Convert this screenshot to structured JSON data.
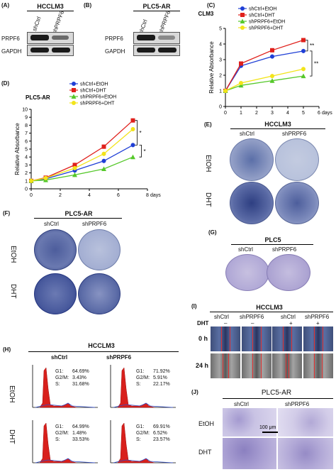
{
  "panel_A": {
    "letter": "(A)",
    "title": "HCCLM3",
    "lane_labels": [
      "shCtrl",
      "shPRPF6"
    ],
    "row_labels": [
      "PRPF6",
      "GAPDH"
    ]
  },
  "panel_B": {
    "letter": "(B)",
    "title": "PLC5-AR",
    "lane_labels": [
      "shCtrl",
      "shPRPF6"
    ],
    "row_labels": [
      "PRPF6",
      "GAPDH"
    ]
  },
  "panel_E": {
    "letter": "(E)",
    "title": "HCCLM3",
    "col_labels": [
      "shCtrl",
      "shPRPF6"
    ],
    "row_labels": [
      "EtOH",
      "DHT"
    ]
  },
  "panel_F": {
    "letter": "(F)",
    "title": "PLC5-AR",
    "col_labels": [
      "shCtrl",
      "shPRPF6"
    ],
    "row_labels": [
      "EtOH",
      "DHT"
    ]
  },
  "panel_G": {
    "letter": "(G)",
    "title": "PLC5",
    "col_labels": [
      "shCtrl",
      "shPRPF6"
    ]
  },
  "panel_I": {
    "letter": "(I)",
    "title": "HCCLM3",
    "col_labels": [
      "shCtrl",
      "shPRPF6",
      "shCtrl",
      "shPRPF6"
    ],
    "dht_label": "DHT",
    "dht_signs": [
      "–",
      "–",
      "+",
      "+"
    ],
    "row_labels": [
      "0 h",
      "24 h"
    ]
  },
  "panel_H": {
    "letter": "(H)",
    "title": "HCCLM3",
    "col_labels": [
      "shCtrl",
      "shPRPF6"
    ],
    "row_labels": [
      "EtOH",
      "DHT"
    ],
    "stats": [
      {
        "g1": "G1:",
        "g1v": "64.69%",
        "g2": "G2/M:",
        "g2v": "3.43%",
        "s": "S:",
        "sv": "31.68%"
      },
      {
        "g1": "G1:",
        "g1v": "71.92%",
        "g2": "G2/M:",
        "g2v": "5.91%",
        "s": "S:",
        "sv": "22.17%"
      },
      {
        "g1": "G1:",
        "g1v": "64.99%",
        "g2": "G2/M:",
        "g2v": "1.48%",
        "s": "S:",
        "sv": "33.53%"
      },
      {
        "g1": "G1:",
        "g1v": "69.91%",
        "g2": "G2/M:",
        "g2v": "6.52%",
        "s": "S:",
        "sv": "23.57%"
      }
    ]
  },
  "panel_J": {
    "letter": "(J)",
    "title": "PLC5-AR",
    "col_labels": [
      "shCtrl",
      "shPRPF6"
    ],
    "row_labels": [
      "EtOH",
      "DHT"
    ],
    "scale_bar": "100 μm"
  },
  "chart_data": [
    {
      "panel": "(C)",
      "type": "line",
      "title": "HCCLM3",
      "ylabel": "Relative Absorbance",
      "xlabel": "days",
      "x": [
        0,
        1,
        3,
        5
      ],
      "xlim": [
        0,
        6
      ],
      "ylim": [
        0,
        5
      ],
      "xticks": [
        0,
        1,
        2,
        3,
        4,
        5,
        6
      ],
      "yticks": [
        0,
        1,
        2,
        3,
        4,
        5
      ],
      "series": [
        {
          "name": "shCtrl+EtOH",
          "color": "#1f3fd6",
          "marker": "circle",
          "values": [
            1.0,
            2.6,
            3.2,
            3.55
          ]
        },
        {
          "name": "shCtrl+DHT",
          "color": "#e0201b",
          "marker": "square",
          "values": [
            1.0,
            2.75,
            3.6,
            4.25
          ]
        },
        {
          "name": "shPRPF6+EtOH",
          "color": "#55c82a",
          "marker": "triangle",
          "values": [
            1.0,
            1.35,
            1.65,
            1.95
          ]
        },
        {
          "name": "shPRPF6+DHT",
          "color": "#f2e41a",
          "marker": "circle",
          "values": [
            1.0,
            1.5,
            1.95,
            2.4
          ]
        }
      ],
      "significance": [
        "**",
        "**"
      ]
    },
    {
      "panel": "(D)",
      "type": "line",
      "title": "PLC5-AR",
      "ylabel": "Relative Absorbance",
      "xlabel": "days",
      "x": [
        0,
        1,
        3,
        5,
        7
      ],
      "xlim": [
        0,
        8
      ],
      "ylim": [
        0,
        10
      ],
      "xticks": [
        0,
        2,
        4,
        6,
        8
      ],
      "yticks": [
        0,
        1,
        2,
        3,
        4,
        5,
        6,
        7,
        8,
        9,
        10
      ],
      "series": [
        {
          "name": "shCtrl+EtOH",
          "color": "#1f3fd6",
          "marker": "circle",
          "values": [
            1.0,
            1.25,
            2.3,
            3.5,
            5.5
          ]
        },
        {
          "name": "shCtrl+DHT",
          "color": "#e0201b",
          "marker": "square",
          "values": [
            1.0,
            1.4,
            3.0,
            5.3,
            8.6
          ]
        },
        {
          "name": "shPRPF6+EtOH",
          "color": "#55c82a",
          "marker": "triangle",
          "values": [
            1.0,
            1.1,
            1.75,
            2.5,
            4.0
          ]
        },
        {
          "name": "shPRPF6+DHT",
          "color": "#f2e41a",
          "marker": "circle",
          "values": [
            1.0,
            1.35,
            2.6,
            4.4,
            7.5
          ]
        }
      ],
      "significance": [
        "*",
        "*"
      ]
    }
  ]
}
